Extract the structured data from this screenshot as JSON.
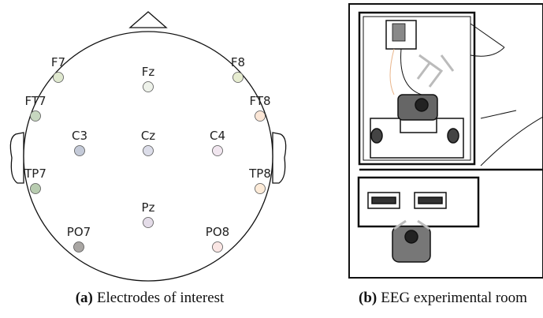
{
  "panels": [
    {
      "label": "(a)",
      "caption": "Electrodes of interest",
      "electrodes": [
        {
          "name": "F7",
          "color": "#dfe8cf"
        },
        {
          "name": "Fz",
          "color": "#eef2ea"
        },
        {
          "name": "F8",
          "color": "#e6ecd0"
        },
        {
          "name": "FT7",
          "color": "#c7d7c0"
        },
        {
          "name": "FT8",
          "color": "#fbe6d6"
        },
        {
          "name": "C3",
          "color": "#c4cad8"
        },
        {
          "name": "Cz",
          "color": "#dcdde9"
        },
        {
          "name": "C4",
          "color": "#f1e6ef"
        },
        {
          "name": "TP7",
          "color": "#b8ccb0"
        },
        {
          "name": "TP8",
          "color": "#fdebd8"
        },
        {
          "name": "Pz",
          "color": "#e4dce8"
        },
        {
          "name": "PO7",
          "color": "#a9a6a3"
        },
        {
          "name": "PO8",
          "color": "#fae6e4"
        }
      ]
    },
    {
      "label": "(b)",
      "caption": "EEG experimental room"
    }
  ]
}
